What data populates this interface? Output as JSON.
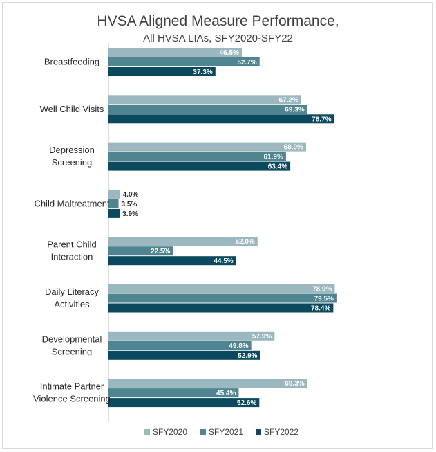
{
  "chart_data": {
    "type": "bar",
    "orientation": "horizontal",
    "title": "HVSA Aligned Measure Performance,",
    "subtitle": "All HVSA LIAs, SFY2020-SFY22",
    "categories": [
      [
        "Breastfeeding"
      ],
      [
        "Well Child Visits"
      ],
      [
        "Depression",
        "Screening"
      ],
      [
        "Child Maltreatment"
      ],
      [
        "Parent Child",
        "Interaction"
      ],
      [
        "Daily Literacy",
        "Activities"
      ],
      [
        "Developmental",
        "Screening"
      ],
      [
        "Intimate Partner",
        "Violence Screening"
      ]
    ],
    "series": [
      {
        "name": "SFY2020",
        "color": "#9bb7bf",
        "values": [
          46.5,
          67.2,
          68.9,
          4.0,
          52.0,
          78.9,
          57.9,
          69.3
        ]
      },
      {
        "name": "SFY2021",
        "color": "#4e8590",
        "values": [
          52.7,
          69.3,
          61.9,
          3.5,
          22.5,
          79.5,
          49.8,
          45.4
        ]
      },
      {
        "name": "SFY2022",
        "color": "#0b4a5e",
        "values": [
          37.3,
          78.7,
          63.4,
          3.9,
          44.5,
          78.4,
          52.9,
          52.6
        ]
      }
    ],
    "value_suffix": "%",
    "xlim": [
      0,
      100
    ],
    "legend_position": "bottom",
    "grid": false
  }
}
